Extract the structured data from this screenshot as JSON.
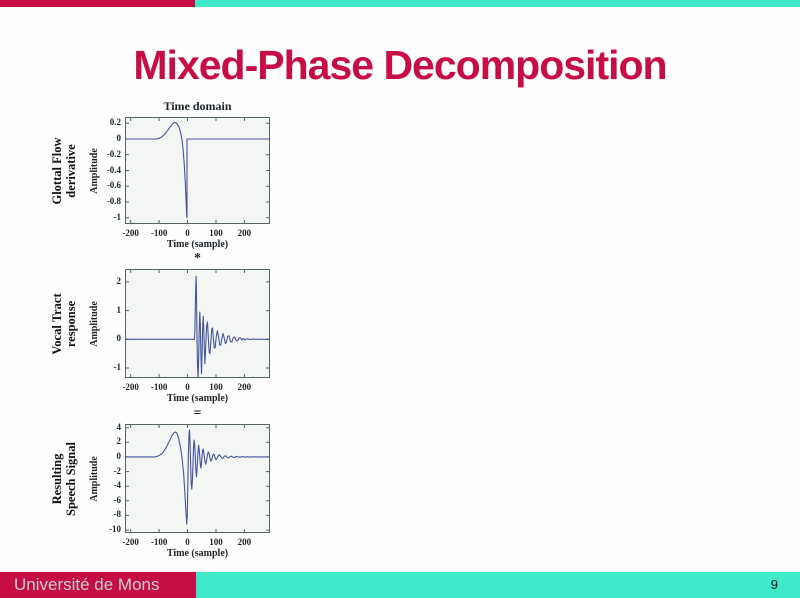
{
  "title": "Mixed-Phase Decomposition",
  "footer": {
    "brand": "Université de Mons",
    "page_number": "9"
  },
  "colors": {
    "accent_red": "#c60e45",
    "teal": "#40eac8",
    "line": "#45549e",
    "box_border": "#54645f",
    "plot_background": "#f4f6f4",
    "footer_text": "#c9cdd2"
  },
  "chart_data": {
    "type": "line",
    "legend": "none",
    "grid": false,
    "plots": [
      {
        "name": "glottal-flow-derivative",
        "row_label_lines": [
          "Glottal Flow",
          "derivative"
        ],
        "heading": "Time domain",
        "heading_is_operator": false,
        "ylabel": "Amplitude",
        "xlabel": "Time (sample)",
        "xlim": [
          -220,
          290
        ],
        "ylim": [
          -1.08,
          0.28
        ],
        "xticks": [
          -200,
          -100,
          0,
          100,
          200
        ],
        "xtick_labels": [
          "-200",
          "-100",
          "0",
          "100",
          "200"
        ],
        "yticks": [
          0.2,
          0,
          -0.2,
          -0.4,
          -0.6,
          -0.8,
          -1
        ],
        "ytick_labels": [
          "0.2",
          "0",
          "-0.2",
          "-0.4",
          "-0.6",
          "-0.8",
          "-1"
        ],
        "points": [
          [
            -220,
            0
          ],
          [
            -110,
            0
          ],
          [
            -100,
            0.01
          ],
          [
            -90,
            0.03
          ],
          [
            -80,
            0.06
          ],
          [
            -70,
            0.11
          ],
          [
            -60,
            0.16
          ],
          [
            -52,
            0.195
          ],
          [
            -45,
            0.21
          ],
          [
            -40,
            0.205
          ],
          [
            -35,
            0.185
          ],
          [
            -30,
            0.15
          ],
          [
            -25,
            0.09
          ],
          [
            -20,
            0
          ],
          [
            -16,
            -0.12
          ],
          [
            -12,
            -0.3
          ],
          [
            -8,
            -0.55
          ],
          [
            -5,
            -0.78
          ],
          [
            -3,
            -0.97
          ],
          [
            -2,
            -1
          ],
          [
            -2,
            0
          ],
          [
            290,
            0
          ]
        ]
      },
      {
        "name": "vocal-tract-response",
        "row_label_lines": [
          "Vocal Tract",
          "response"
        ],
        "heading": "*",
        "heading_is_operator": true,
        "ylabel": "Amplitude",
        "xlabel": "Time (sample)",
        "xlim": [
          -220,
          290
        ],
        "ylim": [
          -1.35,
          2.45
        ],
        "xticks": [
          -200,
          -100,
          0,
          100,
          200
        ],
        "xtick_labels": [
          "-200",
          "-100",
          "0",
          "100",
          "200"
        ],
        "yticks": [
          2,
          1,
          0,
          -1
        ],
        "ytick_labels": [
          "2",
          "1",
          "0",
          "-1"
        ],
        "points": [
          [
            -220,
            0
          ],
          [
            24,
            0
          ],
          [
            26,
            0.3
          ],
          [
            28,
            1.5
          ],
          [
            30,
            2.2
          ],
          [
            31,
            1.8
          ],
          [
            33,
            0.3
          ],
          [
            35,
            -0.9
          ],
          [
            37,
            -1.35
          ],
          [
            39,
            -0.8
          ],
          [
            41,
            0.3
          ],
          [
            43,
            0.95
          ],
          [
            45,
            0.55
          ],
          [
            47,
            -0.5
          ],
          [
            49,
            -1.2
          ],
          [
            51,
            -0.6
          ],
          [
            53,
            0.3
          ],
          [
            55,
            0.8
          ],
          [
            57,
            0.35
          ],
          [
            59,
            -0.35
          ],
          [
            61,
            -0.85
          ],
          [
            64,
            -0.25
          ],
          [
            67,
            0.45
          ],
          [
            70,
            0.6
          ],
          [
            73,
            0.05
          ],
          [
            76,
            -0.45
          ],
          [
            79,
            -0.5
          ],
          [
            82,
            -0.05
          ],
          [
            85,
            0.35
          ],
          [
            88,
            0.4
          ],
          [
            91,
            0
          ],
          [
            94,
            -0.3
          ],
          [
            97,
            -0.3
          ],
          [
            101,
            0.1
          ],
          [
            105,
            0.3
          ],
          [
            109,
            0.1
          ],
          [
            113,
            -0.2
          ],
          [
            117,
            -0.2
          ],
          [
            121,
            0.05
          ],
          [
            125,
            0.2
          ],
          [
            129,
            0.05
          ],
          [
            133,
            -0.15
          ],
          [
            137,
            -0.1
          ],
          [
            141,
            0.1
          ],
          [
            146,
            0.12
          ],
          [
            151,
            -0.08
          ],
          [
            156,
            -0.1
          ],
          [
            161,
            0.06
          ],
          [
            166,
            0.08
          ],
          [
            171,
            -0.05
          ],
          [
            176,
            -0.06
          ],
          [
            181,
            0.04
          ],
          [
            186,
            0.05
          ],
          [
            191,
            -0.03
          ],
          [
            196,
            0.03
          ],
          [
            201,
            -0.02
          ],
          [
            210,
            0.02
          ],
          [
            220,
            -0.01
          ],
          [
            230,
            0.01
          ],
          [
            240,
            0
          ],
          [
            290,
            0
          ]
        ]
      },
      {
        "name": "resulting-speech-signal",
        "row_label_lines": [
          "Resulting",
          "Speech Signal"
        ],
        "heading": "=",
        "heading_is_operator": true,
        "ylabel": "Amplitude",
        "xlabel": "Time (sample)",
        "xlim": [
          -220,
          290
        ],
        "ylim": [
          -10.4,
          4.5
        ],
        "xticks": [
          -200,
          -100,
          0,
          100,
          200
        ],
        "xtick_labels": [
          "-200",
          "-100",
          "0",
          "100",
          "200"
        ],
        "yticks": [
          4,
          2,
          0,
          -2,
          -4,
          -6,
          -8,
          -10
        ],
        "ytick_labels": [
          "4",
          "2",
          "0",
          "-2",
          "-4",
          "-6",
          "-8",
          "-10"
        ],
        "points": [
          [
            -220,
            0
          ],
          [
            -115,
            0
          ],
          [
            -105,
            0.1
          ],
          [
            -95,
            0.3
          ],
          [
            -85,
            0.7
          ],
          [
            -75,
            1.3
          ],
          [
            -65,
            2.1
          ],
          [
            -55,
            2.9
          ],
          [
            -48,
            3.3
          ],
          [
            -42,
            3.4
          ],
          [
            -37,
            3.2
          ],
          [
            -32,
            2.6
          ],
          [
            -27,
            1.7
          ],
          [
            -22,
            0.6
          ],
          [
            -18,
            -0.6
          ],
          [
            -14,
            -2.2
          ],
          [
            -10,
            -4.5
          ],
          [
            -6,
            -7.2
          ],
          [
            -3,
            -9.2
          ],
          [
            -1,
            -8
          ],
          [
            1,
            -4
          ],
          [
            3,
            0.5
          ],
          [
            5,
            3.2
          ],
          [
            7,
            3.7
          ],
          [
            9,
            1.8
          ],
          [
            11,
            -1.2
          ],
          [
            13,
            -3.6
          ],
          [
            15,
            -4.4
          ],
          [
            17,
            -3.2
          ],
          [
            19,
            -1
          ],
          [
            21,
            1.2
          ],
          [
            23,
            2.3
          ],
          [
            25,
            1.6
          ],
          [
            27,
            0.2
          ],
          [
            29,
            -1.6
          ],
          [
            31,
            -2.7
          ],
          [
            33,
            -2
          ],
          [
            35,
            -0.6
          ],
          [
            37,
            0.9
          ],
          [
            39,
            1.6
          ],
          [
            41,
            1
          ],
          [
            43,
            0
          ],
          [
            45,
            -1
          ],
          [
            47,
            -1.5
          ],
          [
            49,
            -0.9
          ],
          [
            51,
            0.1
          ],
          [
            53,
            0.9
          ],
          [
            55,
            1.1
          ],
          [
            58,
            0.4
          ],
          [
            61,
            -0.5
          ],
          [
            64,
            -1
          ],
          [
            67,
            -0.5
          ],
          [
            70,
            0.3
          ],
          [
            73,
            0.7
          ],
          [
            76,
            0.4
          ],
          [
            79,
            -0.2
          ],
          [
            82,
            -0.6
          ],
          [
            85,
            -0.4
          ],
          [
            88,
            0.1
          ],
          [
            91,
            0.4
          ],
          [
            94,
            0.3
          ],
          [
            97,
            -0.1
          ],
          [
            100,
            -0.35
          ],
          [
            104,
            -0.2
          ],
          [
            108,
            0.15
          ],
          [
            112,
            0.3
          ],
          [
            116,
            0.1
          ],
          [
            120,
            -0.15
          ],
          [
            124,
            -0.2
          ],
          [
            128,
            0
          ],
          [
            132,
            0.15
          ],
          [
            136,
            0.1
          ],
          [
            140,
            -0.1
          ],
          [
            145,
            -0.12
          ],
          [
            150,
            0.05
          ],
          [
            155,
            0.1
          ],
          [
            160,
            -0.05
          ],
          [
            165,
            -0.08
          ],
          [
            170,
            0.04
          ],
          [
            175,
            0.06
          ],
          [
            180,
            -0.03
          ],
          [
            185,
            -0.04
          ],
          [
            190,
            0.03
          ],
          [
            195,
            0.04
          ],
          [
            200,
            -0.02
          ],
          [
            210,
            0.02
          ],
          [
            220,
            -0.02
          ],
          [
            230,
            0.01
          ],
          [
            240,
            0
          ],
          [
            290,
            0
          ]
        ]
      }
    ]
  }
}
